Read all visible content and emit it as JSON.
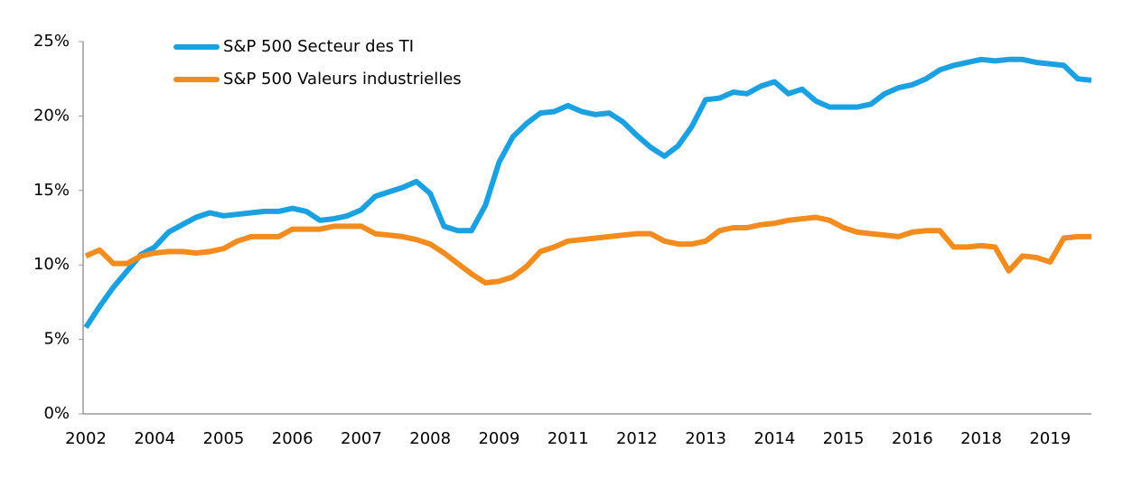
{
  "chart_data": {
    "type": "line",
    "categories": [
      "2002",
      null,
      null,
      null,
      null,
      "2004",
      null,
      null,
      null,
      null,
      "2005",
      null,
      null,
      null,
      null,
      "2006",
      null,
      null,
      null,
      null,
      "2007",
      null,
      null,
      null,
      null,
      "2008",
      null,
      null,
      null,
      null,
      "2009",
      null,
      null,
      null,
      null,
      "2011",
      null,
      null,
      null,
      null,
      "2012",
      null,
      null,
      null,
      null,
      "2013",
      null,
      null,
      null,
      null,
      "2014",
      null,
      null,
      null,
      null,
      "2015",
      null,
      null,
      null,
      null,
      "2016",
      null,
      null,
      null,
      null,
      "2018",
      null,
      null,
      null,
      null,
      "2019",
      null,
      null,
      null
    ],
    "series": [
      {
        "name": "S&P 500 Secteur des TI",
        "color": "#1ba1e2",
        "values": [
          5.8,
          7.2,
          8.5,
          9.6,
          10.7,
          11.2,
          12.2,
          12.7,
          13.2,
          13.5,
          13.3,
          13.4,
          13.5,
          13.6,
          13.6,
          13.8,
          13.6,
          13.0,
          13.1,
          13.3,
          13.7,
          14.6,
          14.9,
          15.2,
          15.6,
          14.8,
          12.6,
          12.3,
          12.3,
          14.0,
          16.9,
          18.6,
          19.5,
          20.2,
          20.3,
          20.7,
          20.3,
          20.1,
          20.2,
          19.6,
          18.7,
          17.9,
          17.3,
          18.0,
          19.3,
          21.1,
          21.2,
          21.6,
          21.5,
          22.0,
          22.3,
          21.5,
          21.8,
          21.0,
          20.6,
          20.6,
          20.6,
          20.8,
          21.5,
          21.9,
          22.1,
          22.5,
          23.1,
          23.4,
          23.6,
          23.8,
          23.7,
          23.8,
          23.8,
          23.6,
          23.5,
          23.4,
          22.5,
          22.4
        ]
      },
      {
        "name": "S&P 500 Valeurs industrielles",
        "color": "#f28c1e",
        "values": [
          10.6,
          11.0,
          10.1,
          10.1,
          10.6,
          10.8,
          10.9,
          10.9,
          10.8,
          10.9,
          11.1,
          11.6,
          11.9,
          11.9,
          11.9,
          12.4,
          12.4,
          12.4,
          12.6,
          12.6,
          12.6,
          12.1,
          12.0,
          11.9,
          11.7,
          11.4,
          10.8,
          10.1,
          9.4,
          8.8,
          8.9,
          9.2,
          9.9,
          10.9,
          11.2,
          11.6,
          11.7,
          11.8,
          11.9,
          12.0,
          12.1,
          12.1,
          11.6,
          11.4,
          11.4,
          11.6,
          12.3,
          12.5,
          12.5,
          12.7,
          12.8,
          13.0,
          13.1,
          13.2,
          13.0,
          12.5,
          12.2,
          12.1,
          12.0,
          11.9,
          12.2,
          12.3,
          12.3,
          11.2,
          11.2,
          11.3,
          11.2,
          9.6,
          10.6,
          10.5,
          10.2,
          11.8,
          11.9,
          11.9
        ]
      }
    ],
    "ylim": [
      0,
      25
    ],
    "yticks": [
      {
        "value": 0,
        "label": "0%"
      },
      {
        "value": 5,
        "label": "5%"
      },
      {
        "value": 10,
        "label": "10%"
      },
      {
        "value": 15,
        "label": "15%"
      },
      {
        "value": 20,
        "label": "20%"
      },
      {
        "value": 25,
        "label": "25%"
      }
    ],
    "grid": false,
    "legend": "upper left"
  }
}
